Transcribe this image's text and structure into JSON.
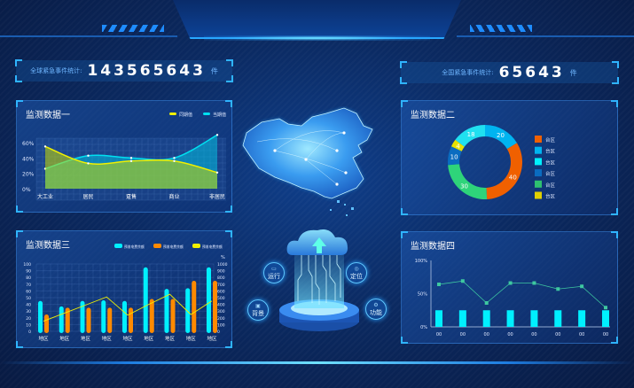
{
  "stats": {
    "global": {
      "label": "全球紧急事件统计:",
      "value": "143565643",
      "unit": "件"
    },
    "national": {
      "label": "全国紧急事件统计:",
      "value": "65643",
      "unit": "件"
    }
  },
  "center": {
    "features": [
      {
        "label": "运行",
        "icon": "monitor-icon"
      },
      {
        "label": "定位",
        "icon": "location-icon"
      },
      {
        "label": "背景",
        "icon": "image-icon"
      },
      {
        "label": "功能",
        "icon": "gear-icon"
      }
    ]
  },
  "colors": {
    "cyan": "#00e8ff",
    "yellow": "#f0f000",
    "orange": "#ff8a00",
    "teal": "#3ec8a0"
  },
  "chart_data": [
    {
      "type": "area",
      "title": "监测数据一",
      "categories": [
        "大工业",
        "居民",
        "趸售",
        "商业",
        "非居民"
      ],
      "yticks": [
        "60%",
        "40%",
        "20%",
        "0%"
      ],
      "ylim": [
        0,
        60
      ],
      "series": [
        {
          "name": "同期值",
          "color": "#f0f000",
          "values": [
            55,
            33,
            36,
            36,
            21
          ]
        },
        {
          "name": "当期值",
          "color": "#00e0f0",
          "values": [
            26,
            43,
            40,
            40,
            70
          ]
        }
      ],
      "legend": "top-right"
    },
    {
      "type": "pie",
      "title": "监测数据二",
      "slices": [
        {
          "value": 20,
          "color": "#00b4f0",
          "label": "台区"
        },
        {
          "value": 40,
          "color": "#f06000",
          "label": "台区"
        },
        {
          "value": 30,
          "color": "#2ed47a",
          "label": "台区"
        },
        {
          "value": 10,
          "color": "#0a6cc0",
          "label": "台区"
        },
        {
          "value": 4,
          "color": "#e8e000",
          "label": "台区"
        },
        {
          "value": 18,
          "color": "#20e0f0",
          "label": "台区"
        }
      ],
      "legend": [
        {
          "label": "台区",
          "color": "#f06000"
        },
        {
          "label": "台区",
          "color": "#00b4f0"
        },
        {
          "label": "台区",
          "color": "#00f0ff"
        },
        {
          "label": "台区",
          "color": "#0a6cc0"
        },
        {
          "label": "台区",
          "color": "#2ec070"
        },
        {
          "label": "台区",
          "color": "#e0d000"
        }
      ]
    },
    {
      "type": "bar",
      "title": "监测数据三",
      "categories": [
        "地区",
        "地区",
        "地区",
        "地区",
        "地区",
        "地区",
        "地区",
        "地区",
        "地区"
      ],
      "yleft": {
        "ylim": [
          0,
          100
        ],
        "ticks": [
          "100",
          "90",
          "80",
          "70",
          "60",
          "50",
          "40",
          "30",
          "20",
          "10",
          "0"
        ]
      },
      "yright": {
        "ylim": [
          0,
          1000
        ],
        "unit": "%",
        "ticks": [
          "1000",
          "900",
          "800",
          "700",
          "600",
          "500",
          "400",
          "300",
          "200",
          "100",
          "0"
        ]
      },
      "series": [
        {
          "name": "预收电费余额",
          "color": "#00f0ff",
          "type": "bar",
          "values": [
            45,
            37,
            45,
            46,
            45,
            95,
            63,
            64,
            95
          ]
        },
        {
          "name": "预收电费余额",
          "color": "#ff8a00",
          "type": "bar",
          "values": [
            25,
            35,
            35,
            35,
            35,
            48,
            48,
            75,
            75
          ]
        },
        {
          "name": "预收电费余额",
          "color": "#f0f000",
          "type": "line",
          "axis": "right",
          "values": [
            150,
            270,
            390,
            510,
            240,
            400,
            550,
            250,
            450
          ]
        }
      ],
      "legend": "top-right"
    },
    {
      "type": "bar",
      "title": "监测数据四",
      "categories": [
        "00",
        "00",
        "00",
        "00",
        "00",
        "00",
        "00",
        "00"
      ],
      "yticks": [
        "100%",
        "50%",
        "0%"
      ],
      "ylim": [
        0,
        100
      ],
      "series": [
        {
          "type": "bar",
          "color": "#00f0ff",
          "values": [
            25,
            25,
            25,
            25,
            25,
            25,
            25,
            25
          ]
        },
        {
          "type": "line",
          "color": "#3ec8a0",
          "values": [
            64,
            69,
            36,
            66,
            66,
            57,
            61,
            29
          ]
        }
      ]
    }
  ]
}
